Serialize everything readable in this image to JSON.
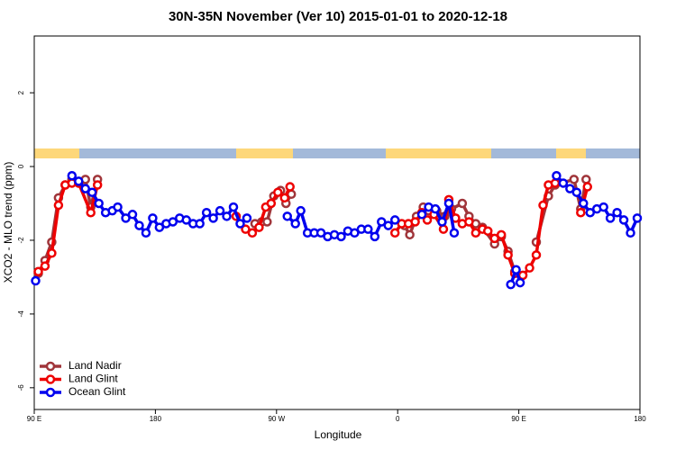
{
  "chart_data": {
    "type": "line",
    "title": "30N-35N November (Ver 10)   2015-01-01 to 2020-12-18",
    "x_label": "Longitude",
    "y_label": "XCO2 - MLO trend (ppm)",
    "xlim": [
      90,
      540
    ],
    "ylim": [
      -6.59,
      3.54
    ],
    "xticks": [
      {
        "value": 90,
        "label": "90 E"
      },
      {
        "value": 180,
        "label": "180"
      },
      {
        "value": 270,
        "label": "90 W"
      },
      {
        "value": 360,
        "label": "0"
      },
      {
        "value": 450,
        "label": "90 E"
      },
      {
        "value": 540,
        "label": "180"
      }
    ],
    "yticks": [
      2,
      0,
      -2,
      -4,
      -6
    ],
    "legend": "lower left",
    "series": [
      {
        "name": "Land Nadir",
        "color": "#a0353a",
        "x": [
          93,
          98,
          103,
          108,
          113,
          118,
          128,
          132,
          137,
          200,
          254,
          259,
          263,
          268,
          273,
          277,
          281,
          320,
          365,
          369,
          374,
          379,
          383,
          389,
          395,
          400,
          408,
          413,
          418,
          423,
          432,
          437,
          442,
          447,
          455,
          463,
          472,
          477,
          491,
          496,
          500
        ],
        "values": [
          -2.9,
          -2.55,
          -2.05,
          -0.85,
          -0.5,
          -0.35,
          -0.35,
          -1.1,
          -0.35,
          null,
          -1.55,
          -1.5,
          -1.5,
          -0.8,
          -0.65,
          -1.0,
          -0.75,
          null,
          -1.6,
          -1.85,
          -1.35,
          -1.1,
          -1.2,
          -1.2,
          -1.35,
          -1.15,
          -1.0,
          -1.35,
          -1.55,
          -1.65,
          -2.1,
          -1.9,
          -2.3,
          -2.85,
          null,
          -2.05,
          -0.8,
          -0.5,
          -0.35,
          -1.15,
          -0.35
        ]
      },
      {
        "name": "Land Glint",
        "color": "#ee0000",
        "x": [
          93,
          98,
          103,
          108,
          113,
          118,
          123,
          132,
          137,
          190,
          240,
          247,
          252,
          257,
          262,
          266,
          271,
          276,
          280,
          320,
          358,
          363,
          368,
          373,
          378,
          382,
          387,
          394,
          398,
          403,
          408,
          413,
          418,
          423,
          427,
          432,
          437,
          442,
          447,
          453,
          458,
          463,
          468,
          472,
          477,
          486,
          496,
          501
        ],
        "values": [
          -2.85,
          -2.7,
          -2.35,
          -1.05,
          -0.5,
          -0.45,
          -0.45,
          -1.25,
          -0.5,
          null,
          -1.35,
          -1.7,
          -1.8,
          -1.65,
          -1.1,
          -1.0,
          -0.7,
          -0.85,
          -0.55,
          null,
          -1.8,
          -1.55,
          -1.55,
          -1.5,
          -1.25,
          -1.45,
          -1.3,
          -1.7,
          -0.9,
          -1.4,
          -1.55,
          -1.5,
          -1.8,
          -1.7,
          -1.75,
          -1.95,
          -1.85,
          -2.4,
          -2.9,
          -2.95,
          -2.75,
          -2.4,
          -1.05,
          -0.5,
          -0.45,
          null,
          -1.25,
          -0.55
        ]
      },
      {
        "name": "Ocean Glint",
        "color": "#0000ee",
        "x": [
          91,
          105,
          118,
          123,
          128,
          133,
          138,
          143,
          148,
          152,
          158,
          163,
          168,
          173,
          178,
          183,
          188,
          193,
          198,
          203,
          208,
          213,
          218,
          223,
          228,
          233,
          238,
          243,
          248,
          263,
          278,
          284,
          288,
          293,
          298,
          303,
          308,
          313,
          318,
          323,
          328,
          333,
          338,
          343,
          348,
          353,
          358,
          368,
          378,
          383,
          388,
          393,
          398,
          402,
          420,
          444,
          448,
          451,
          465,
          478,
          483,
          488,
          493,
          498,
          503,
          508,
          513,
          518,
          523,
          528,
          533,
          538
        ],
        "values": [
          -3.1,
          null,
          -0.25,
          -0.4,
          -0.6,
          -0.7,
          -1.0,
          -1.25,
          -1.2,
          -1.1,
          -1.4,
          -1.3,
          -1.6,
          -1.8,
          -1.4,
          -1.65,
          -1.55,
          -1.5,
          -1.4,
          -1.45,
          -1.55,
          -1.55,
          -1.25,
          -1.4,
          -1.2,
          -1.35,
          -1.1,
          -1.55,
          -1.4,
          null,
          -1.35,
          -1.55,
          -1.2,
          -1.8,
          -1.8,
          -1.8,
          -1.9,
          -1.85,
          -1.9,
          -1.75,
          -1.8,
          -1.7,
          -1.7,
          -1.9,
          -1.5,
          -1.6,
          -1.45,
          null,
          -1.3,
          -1.1,
          -1.15,
          -1.5,
          -1.0,
          -1.8,
          null,
          -3.2,
          -2.8,
          -3.15,
          null,
          -0.25,
          -0.45,
          -0.6,
          -0.7,
          -1.0,
          -1.25,
          -1.15,
          -1.1,
          -1.4,
          -1.25,
          -1.45,
          -1.8,
          -1.4
        ]
      }
    ]
  }
}
